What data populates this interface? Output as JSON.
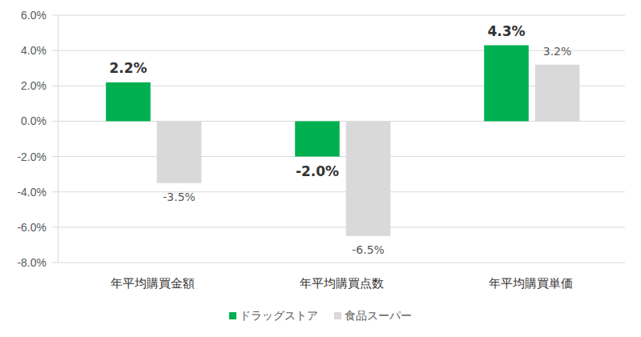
{
  "chart_data": {
    "type": "bar",
    "categories": [
      "年平均購買金額",
      "年平均購買点数",
      "年平均購買単価"
    ],
    "series": [
      {
        "name": "ドラッグストア",
        "color": "#00b050",
        "values": [
          2.2,
          -2.0,
          4.3
        ],
        "value_labels": [
          "2.2%",
          "-2.0%",
          "4.3%"
        ]
      },
      {
        "name": "食品スーパー",
        "color": "#d9d9d9",
        "values": [
          -3.5,
          -6.5,
          3.2
        ],
        "value_labels": [
          "-3.5%",
          "-6.5%",
          "3.2%"
        ]
      }
    ],
    "ylim": [
      -8,
      6
    ],
    "yticks": [
      {
        "value": -8,
        "label": "-8.0%"
      },
      {
        "value": -6,
        "label": "-6.0%"
      },
      {
        "value": -4,
        "label": "-4.0%"
      },
      {
        "value": -2,
        "label": "-2.0%"
      },
      {
        "value": 0,
        "label": "0.0%"
      },
      {
        "value": 2,
        "label": "2.0%"
      },
      {
        "value": 4,
        "label": "4.0%"
      },
      {
        "value": 6,
        "label": "6.0%"
      }
    ],
    "grid": true,
    "data_labels": true,
    "legend": "bottom"
  }
}
